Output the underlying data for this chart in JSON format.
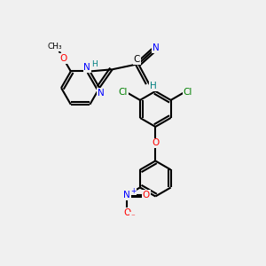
{
  "bg_color": "#f0f0f0",
  "bond_color": "#000000",
  "bond_width": 1.5,
  "atom_colors": {
    "N": "#0000ff",
    "O": "#ff0000",
    "Cl": "#008000",
    "H": "#008080",
    "C": "#000000"
  },
  "fs": 7.5,
  "fs_small": 6.5
}
